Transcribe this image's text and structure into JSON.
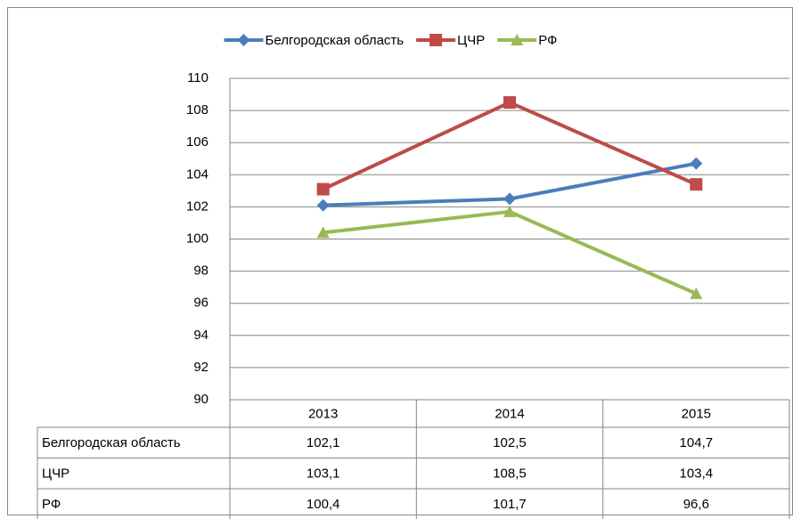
{
  "chart_data": {
    "type": "line",
    "categories": [
      "2013",
      "2014",
      "2015"
    ],
    "series": [
      {
        "name": "Белгородская область",
        "color": "#4a7ebb",
        "marker": "diamond",
        "values": [
          102.1,
          102.5,
          104.7
        ],
        "value_labels": [
          "102,1",
          "102,5",
          "104,7"
        ]
      },
      {
        "name": "ЦЧР",
        "color": "#be4b48",
        "marker": "square",
        "values": [
          103.1,
          108.5,
          103.4
        ],
        "value_labels": [
          "103,1",
          "108,5",
          "103,4"
        ]
      },
      {
        "name": "РФ",
        "color": "#98b954",
        "marker": "triangle",
        "values": [
          100.4,
          101.7,
          96.6
        ],
        "value_labels": [
          "100,4",
          "101,7",
          "96,6"
        ]
      }
    ],
    "ylim": [
      90,
      110
    ],
    "yticks": [
      90,
      92,
      94,
      96,
      98,
      100,
      102,
      104,
      106,
      108,
      110
    ],
    "grid": true,
    "legend": "top",
    "data_table": true
  }
}
